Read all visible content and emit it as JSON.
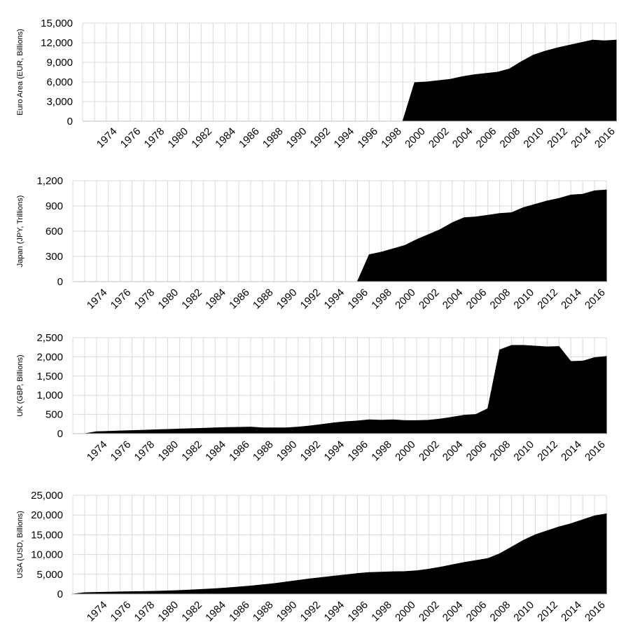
{
  "chart_data": [
    {
      "type": "area",
      "ylabel": "Euro Area (EUR, Billions)",
      "ylim": [
        0,
        15000
      ],
      "yticks": [
        "0",
        "3,000",
        "6,000",
        "9,000",
        "12,000",
        "15,000"
      ],
      "ytick_values": [
        0,
        3000,
        6000,
        9000,
        12000,
        15000
      ],
      "xlim": [
        1972,
        2017
      ],
      "xticks": [
        "1974",
        "1976",
        "1978",
        "1980",
        "1982",
        "1984",
        "1986",
        "1988",
        "1990",
        "1992",
        "1994",
        "1996",
        "1998",
        "2000",
        "2002",
        "2004",
        "2006",
        "2008",
        "2010",
        "2012",
        "2014",
        "2016"
      ],
      "grid": true,
      "color": "#000000",
      "x": [
        1999,
        2000,
        2001,
        2002,
        2003,
        2004,
        2005,
        2006,
        2007,
        2008,
        2009,
        2010,
        2011,
        2012,
        2013,
        2014,
        2015,
        2016,
        2017
      ],
      "y": [
        0,
        5900,
        6000,
        6200,
        6400,
        6800,
        7100,
        7300,
        7500,
        8000,
        9100,
        10100,
        10700,
        11200,
        11600,
        12000,
        12400,
        12300,
        12400
      ]
    },
    {
      "type": "area",
      "ylabel": "Japan (JPY, Trillions)",
      "ylim": [
        0,
        1200
      ],
      "yticks": [
        "0",
        "300",
        "600",
        "900",
        "1,200"
      ],
      "ytick_values": [
        0,
        300,
        600,
        900,
        1200
      ],
      "xlim": [
        1972,
        2017
      ],
      "xticks": [
        "1974",
        "1976",
        "1978",
        "1980",
        "1982",
        "1984",
        "1986",
        "1988",
        "1990",
        "1992",
        "1994",
        "1996",
        "1998",
        "2000",
        "2002",
        "2004",
        "2006",
        "2008",
        "2010",
        "2012",
        "2014",
        "2016"
      ],
      "grid": true,
      "color": "#000000",
      "x": [
        1996,
        1997,
        1998,
        1999,
        2000,
        2001,
        2002,
        2003,
        2004,
        2005,
        2006,
        2007,
        2008,
        2009,
        2010,
        2011,
        2012,
        2013,
        2014,
        2015,
        2016,
        2017
      ],
      "y": [
        0,
        320,
        350,
        390,
        430,
        500,
        560,
        620,
        700,
        760,
        770,
        790,
        810,
        820,
        880,
        920,
        960,
        990,
        1030,
        1040,
        1080,
        1090
      ]
    },
    {
      "type": "area",
      "ylabel": "UK (GBP, Billions)",
      "ylim": [
        0,
        2500
      ],
      "yticks": [
        "0",
        "500",
        "1,000",
        "1,500",
        "2,000",
        "2,500"
      ],
      "ytick_values": [
        0,
        500,
        1000,
        1500,
        2000,
        2500
      ],
      "xlim": [
        1972,
        2017
      ],
      "xticks": [
        "1974",
        "1976",
        "1978",
        "1980",
        "1982",
        "1984",
        "1986",
        "1988",
        "1990",
        "1992",
        "1994",
        "1996",
        "1998",
        "2000",
        "2002",
        "2004",
        "2006",
        "2008",
        "2010",
        "2012",
        "2014",
        "2016"
      ],
      "grid": true,
      "color": "#000000",
      "x": [
        1973,
        1974,
        1975,
        1976,
        1977,
        1978,
        1979,
        1980,
        1981,
        1982,
        1983,
        1984,
        1985,
        1986,
        1987,
        1988,
        1989,
        1990,
        1991,
        1992,
        1993,
        1994,
        1995,
        1996,
        1997,
        1998,
        1999,
        2000,
        2001,
        2002,
        2003,
        2004,
        2005,
        2006,
        2007,
        2008,
        2009,
        2010,
        2011,
        2012,
        2013,
        2014,
        2015,
        2016,
        2017
      ],
      "y": [
        0,
        50,
        60,
        70,
        80,
        90,
        100,
        110,
        120,
        130,
        140,
        150,
        160,
        165,
        170,
        150,
        150,
        150,
        170,
        200,
        240,
        280,
        310,
        330,
        360,
        350,
        360,
        340,
        340,
        350,
        380,
        430,
        480,
        500,
        650,
        2180,
        2300,
        2300,
        2280,
        2260,
        2270,
        1880,
        1890,
        1980,
        2010
      ]
    },
    {
      "type": "area",
      "ylabel": "USA (USD, Billions)",
      "ylim": [
        0,
        25000
      ],
      "yticks": [
        "0",
        "5,000",
        "10,000",
        "15,000",
        "20,000",
        "25,000"
      ],
      "ytick_values": [
        0,
        5000,
        10000,
        15000,
        20000,
        25000
      ],
      "xlim": [
        1972,
        2017
      ],
      "xticks": [
        "1974",
        "1976",
        "1978",
        "1980",
        "1982",
        "1984",
        "1986",
        "1988",
        "1990",
        "1992",
        "1994",
        "1996",
        "1998",
        "2000",
        "2002",
        "2004",
        "2006",
        "2008",
        "2010",
        "2012",
        "2014",
        "2016"
      ],
      "grid": true,
      "color": "#000000",
      "x": [
        1972,
        1973,
        1974,
        1975,
        1976,
        1977,
        1978,
        1979,
        1980,
        1981,
        1982,
        1983,
        1984,
        1985,
        1986,
        1987,
        1988,
        1989,
        1990,
        1991,
        1992,
        1993,
        1994,
        1995,
        1996,
        1997,
        1998,
        1999,
        2000,
        2001,
        2002,
        2003,
        2004,
        2005,
        2006,
        2007,
        2008,
        2009,
        2010,
        2011,
        2012,
        2013,
        2014,
        2015,
        2016,
        2017
      ],
      "y": [
        0,
        350,
        420,
        480,
        550,
        600,
        650,
        720,
        800,
        900,
        1050,
        1200,
        1350,
        1550,
        1800,
        2050,
        2350,
        2650,
        3050,
        3450,
        3850,
        4200,
        4550,
        4850,
        5200,
        5450,
        5550,
        5650,
        5700,
        5900,
        6300,
        6800,
        7400,
        8000,
        8500,
        9000,
        10200,
        11900,
        13600,
        15000,
        16000,
        17000,
        17800,
        18800,
        19800,
        20300
      ]
    }
  ]
}
